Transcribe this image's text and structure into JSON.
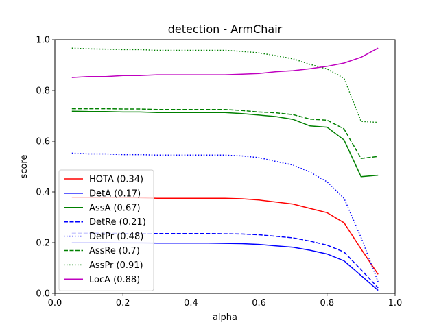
{
  "chart_data": {
    "type": "line",
    "title": "detection - ArmChair",
    "xlabel": "alpha",
    "ylabel": "score",
    "xlim": [
      0.0,
      1.0
    ],
    "ylim": [
      0.0,
      1.0
    ],
    "xticks": [
      "0.0",
      "0.2",
      "0.4",
      "0.6",
      "0.8",
      "1.0"
    ],
    "yticks": [
      "0.0",
      "0.2",
      "0.4",
      "0.6",
      "0.8",
      "1.0"
    ],
    "grid": false,
    "legend_position": "lower-left",
    "x": [
      0.05,
      0.1,
      0.15,
      0.2,
      0.25,
      0.3,
      0.35,
      0.4,
      0.45,
      0.5,
      0.55,
      0.6,
      0.65,
      0.7,
      0.75,
      0.8,
      0.85,
      0.9,
      0.95
    ],
    "series": [
      {
        "name": "HOTA (0.34)",
        "color": "#ff0000",
        "dash": "solid",
        "values": [
          0.378,
          0.378,
          0.378,
          0.378,
          0.377,
          0.375,
          0.375,
          0.375,
          0.375,
          0.375,
          0.373,
          0.368,
          0.36,
          0.352,
          0.335,
          0.318,
          0.278,
          0.175,
          0.075
        ]
      },
      {
        "name": "DetA (0.17)",
        "color": "#0000ff",
        "dash": "solid",
        "values": [
          0.2,
          0.2,
          0.2,
          0.199,
          0.199,
          0.198,
          0.198,
          0.198,
          0.198,
          0.197,
          0.196,
          0.193,
          0.187,
          0.182,
          0.17,
          0.155,
          0.128,
          0.07,
          0.012
        ]
      },
      {
        "name": "AssA (0.67)",
        "color": "#008000",
        "dash": "solid",
        "values": [
          0.718,
          0.717,
          0.717,
          0.715,
          0.715,
          0.713,
          0.713,
          0.713,
          0.713,
          0.713,
          0.709,
          0.703,
          0.697,
          0.686,
          0.66,
          0.655,
          0.605,
          0.46,
          0.466
        ]
      },
      {
        "name": "DetRe (0.21)",
        "color": "#0000ff",
        "dash": "dashed",
        "values": [
          0.237,
          0.237,
          0.237,
          0.236,
          0.236,
          0.236,
          0.236,
          0.236,
          0.236,
          0.235,
          0.234,
          0.231,
          0.225,
          0.219,
          0.206,
          0.19,
          0.163,
          0.093,
          0.022
        ]
      },
      {
        "name": "DetPr (0.48)",
        "color": "#0000ff",
        "dash": "dotted",
        "values": [
          0.553,
          0.55,
          0.55,
          0.547,
          0.547,
          0.545,
          0.545,
          0.545,
          0.545,
          0.545,
          0.542,
          0.535,
          0.52,
          0.506,
          0.478,
          0.44,
          0.375,
          0.22,
          0.045
        ]
      },
      {
        "name": "AssRe (0.7)",
        "color": "#008000",
        "dash": "dashed",
        "values": [
          0.728,
          0.728,
          0.728,
          0.727,
          0.727,
          0.725,
          0.725,
          0.725,
          0.725,
          0.725,
          0.721,
          0.715,
          0.712,
          0.705,
          0.687,
          0.683,
          0.648,
          0.532,
          0.54
        ]
      },
      {
        "name": "AssPr (0.91)",
        "color": "#008000",
        "dash": "dotted",
        "values": [
          0.967,
          0.964,
          0.963,
          0.961,
          0.961,
          0.958,
          0.958,
          0.958,
          0.958,
          0.958,
          0.954,
          0.948,
          0.937,
          0.925,
          0.903,
          0.885,
          0.848,
          0.678,
          0.674
        ]
      },
      {
        "name": "LocA (0.88)",
        "color": "#bf00bf",
        "dash": "solid",
        "values": [
          0.851,
          0.855,
          0.855,
          0.859,
          0.859,
          0.862,
          0.862,
          0.862,
          0.862,
          0.862,
          0.864,
          0.867,
          0.874,
          0.878,
          0.886,
          0.895,
          0.908,
          0.931,
          0.967
        ]
      }
    ]
  }
}
